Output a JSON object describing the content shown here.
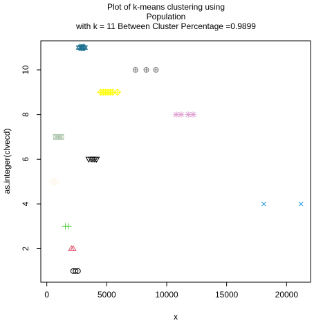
{
  "chart_data": {
    "type": "scatter",
    "title_lines": [
      "Plot of k-means clustering using",
      "Population",
      "with  k = 11 Between Cluster Percentage =0.9899"
    ],
    "xlabel": "x",
    "ylabel": "as.integer(clvecd)",
    "xlim": [
      -500,
      22000
    ],
    "ylim": [
      0.5,
      11.3
    ],
    "x_ticks": [
      0,
      5000,
      10000,
      15000,
      20000
    ],
    "y_ticks": [
      2,
      4,
      6,
      8,
      10
    ],
    "series": [
      {
        "cluster": 1,
        "marker": "circle",
        "color": "#000000",
        "points": [
          [
            2200,
            1
          ],
          [
            2400,
            1
          ],
          [
            2600,
            1
          ]
        ]
      },
      {
        "cluster": 2,
        "marker": "triangle",
        "color": "#df536b",
        "points": [
          [
            2050,
            2
          ],
          [
            2200,
            2
          ]
        ]
      },
      {
        "cluster": 3,
        "marker": "plus",
        "color": "#61d04f",
        "points": [
          [
            1550,
            3
          ],
          [
            1800,
            3
          ]
        ]
      },
      {
        "cluster": 4,
        "marker": "x",
        "color": "#2297e6",
        "points": [
          [
            18100,
            4
          ],
          [
            21200,
            4
          ]
        ]
      },
      {
        "cluster": 5,
        "marker": "diamond",
        "color": "#fff3e0",
        "points": [
          [
            500,
            5
          ],
          [
            700,
            5
          ]
        ]
      },
      {
        "cluster": 6,
        "marker": "triangle-down",
        "color": "#000000",
        "points": [
          [
            3500,
            6
          ],
          [
            3700,
            6
          ],
          [
            3850,
            6
          ],
          [
            4000,
            6
          ],
          [
            4150,
            6
          ]
        ]
      },
      {
        "cluster": 7,
        "marker": "square-cross",
        "color": "#b0c8b0",
        "points": [
          [
            750,
            7
          ],
          [
            900,
            7
          ],
          [
            1050,
            7
          ],
          [
            1200,
            7
          ]
        ]
      },
      {
        "cluster": 8,
        "marker": "asterisk",
        "color": "#df9fd0",
        "points": [
          [
            10800,
            8
          ],
          [
            11200,
            8
          ],
          [
            11800,
            8
          ],
          [
            12200,
            8
          ]
        ]
      },
      {
        "cluster": 9,
        "marker": "diamond-plus",
        "color": "#ffff00",
        "points": [
          [
            4500,
            9
          ],
          [
            4700,
            9
          ],
          [
            4900,
            9
          ],
          [
            5100,
            9
          ],
          [
            5300,
            9
          ],
          [
            5500,
            9
          ],
          [
            5900,
            9
          ]
        ]
      },
      {
        "cluster": 10,
        "marker": "circle-plus",
        "color": "#808080",
        "points": [
          [
            7400,
            10
          ],
          [
            8300,
            10
          ],
          [
            9100,
            10
          ]
        ]
      },
      {
        "cluster": 11,
        "marker": "star",
        "color": "#1a6e8e",
        "points": [
          [
            2700,
            11
          ],
          [
            2850,
            11
          ],
          [
            2950,
            11
          ],
          [
            3050,
            11
          ],
          [
            3150,
            11
          ]
        ]
      }
    ]
  }
}
